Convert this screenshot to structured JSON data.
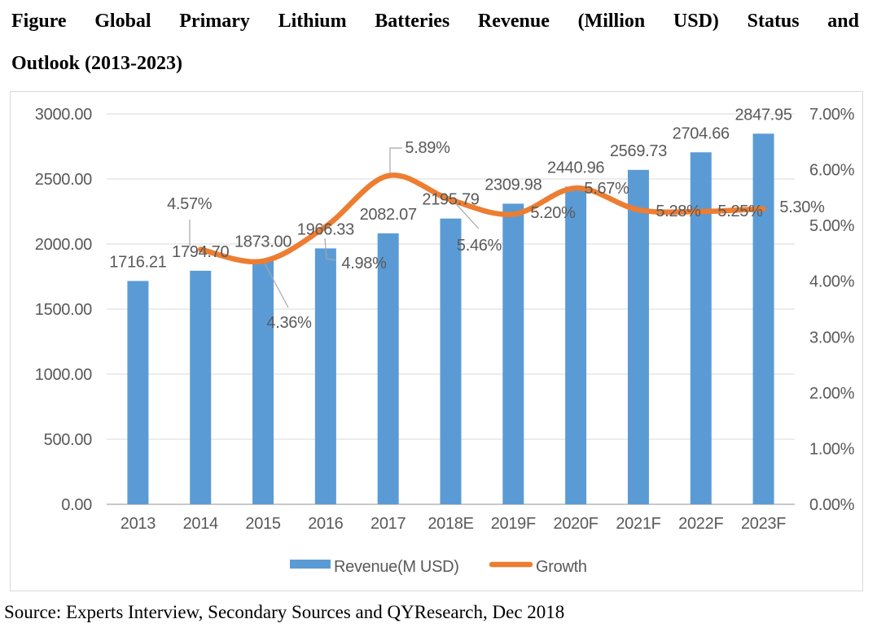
{
  "title": {
    "line1": "Figure Global Primary Lithium Batteries Revenue (Million USD) Status and",
    "line2": "Outlook (2013-2023)"
  },
  "source_note": "Source: Experts Interview, Secondary Sources and QYResearch, Dec 2018",
  "colors": {
    "bar": "#5B9BD5",
    "line": "#ED7D31",
    "gridline": "#D9D9D9",
    "axis_line": "#C9C9C9",
    "chart_text": "#595959",
    "leader_line": "#A6A6A6",
    "frame_border": "#D9D9D9"
  },
  "chart_data": {
    "type": "combo-bar-line",
    "title": "Global Primary Lithium Batteries Revenue (Million USD) Status and Outlook (2013-2023)",
    "categories": [
      "2013",
      "2014",
      "2015",
      "2016",
      "2017",
      "2018E",
      "2019F",
      "2020F",
      "2021F",
      "2022F",
      "2023F"
    ],
    "series": [
      {
        "name": "Revenue(M USD)",
        "type": "bar",
        "axis": "left",
        "color": "#5B9BD5",
        "values": [
          1716.21,
          1794.7,
          1873.0,
          1966.33,
          2082.07,
          2195.79,
          2309.98,
          2440.96,
          2569.73,
          2704.66,
          2847.95
        ],
        "labels": [
          "1716.21",
          "1794.70",
          "1873.00",
          "1966.33",
          "2082.07",
          "2195.79",
          "2309.98",
          "2440.96",
          "2569.73",
          "2704.66",
          "2847.95"
        ]
      },
      {
        "name": "Growth",
        "type": "line",
        "axis": "right",
        "color": "#ED7D31",
        "smooth": true,
        "values": [
          null,
          4.57,
          4.36,
          4.98,
          5.89,
          5.46,
          5.2,
          5.67,
          5.28,
          5.25,
          5.3
        ],
        "labels": [
          "",
          "4.57%",
          "4.36%",
          "4.98%",
          "5.89%",
          "5.46%",
          "5.20%",
          "5.67%",
          "5.28%",
          "5.25%",
          "5.30%"
        ]
      }
    ],
    "left_axis": {
      "min": 0,
      "max": 3000,
      "step": 500,
      "tick_labels": [
        "0.00",
        "500.00",
        "1000.00",
        "1500.00",
        "2000.00",
        "2500.00",
        "3000.00"
      ]
    },
    "right_axis": {
      "min": 0,
      "max": 7,
      "step": 1,
      "tick_labels": [
        "0.00%",
        "1.00%",
        "2.00%",
        "3.00%",
        "4.00%",
        "5.00%",
        "6.00%",
        "7.00%"
      ]
    },
    "legend": {
      "position": "bottom",
      "items": [
        "Revenue(M USD)",
        "Growth"
      ]
    },
    "grid": true
  }
}
